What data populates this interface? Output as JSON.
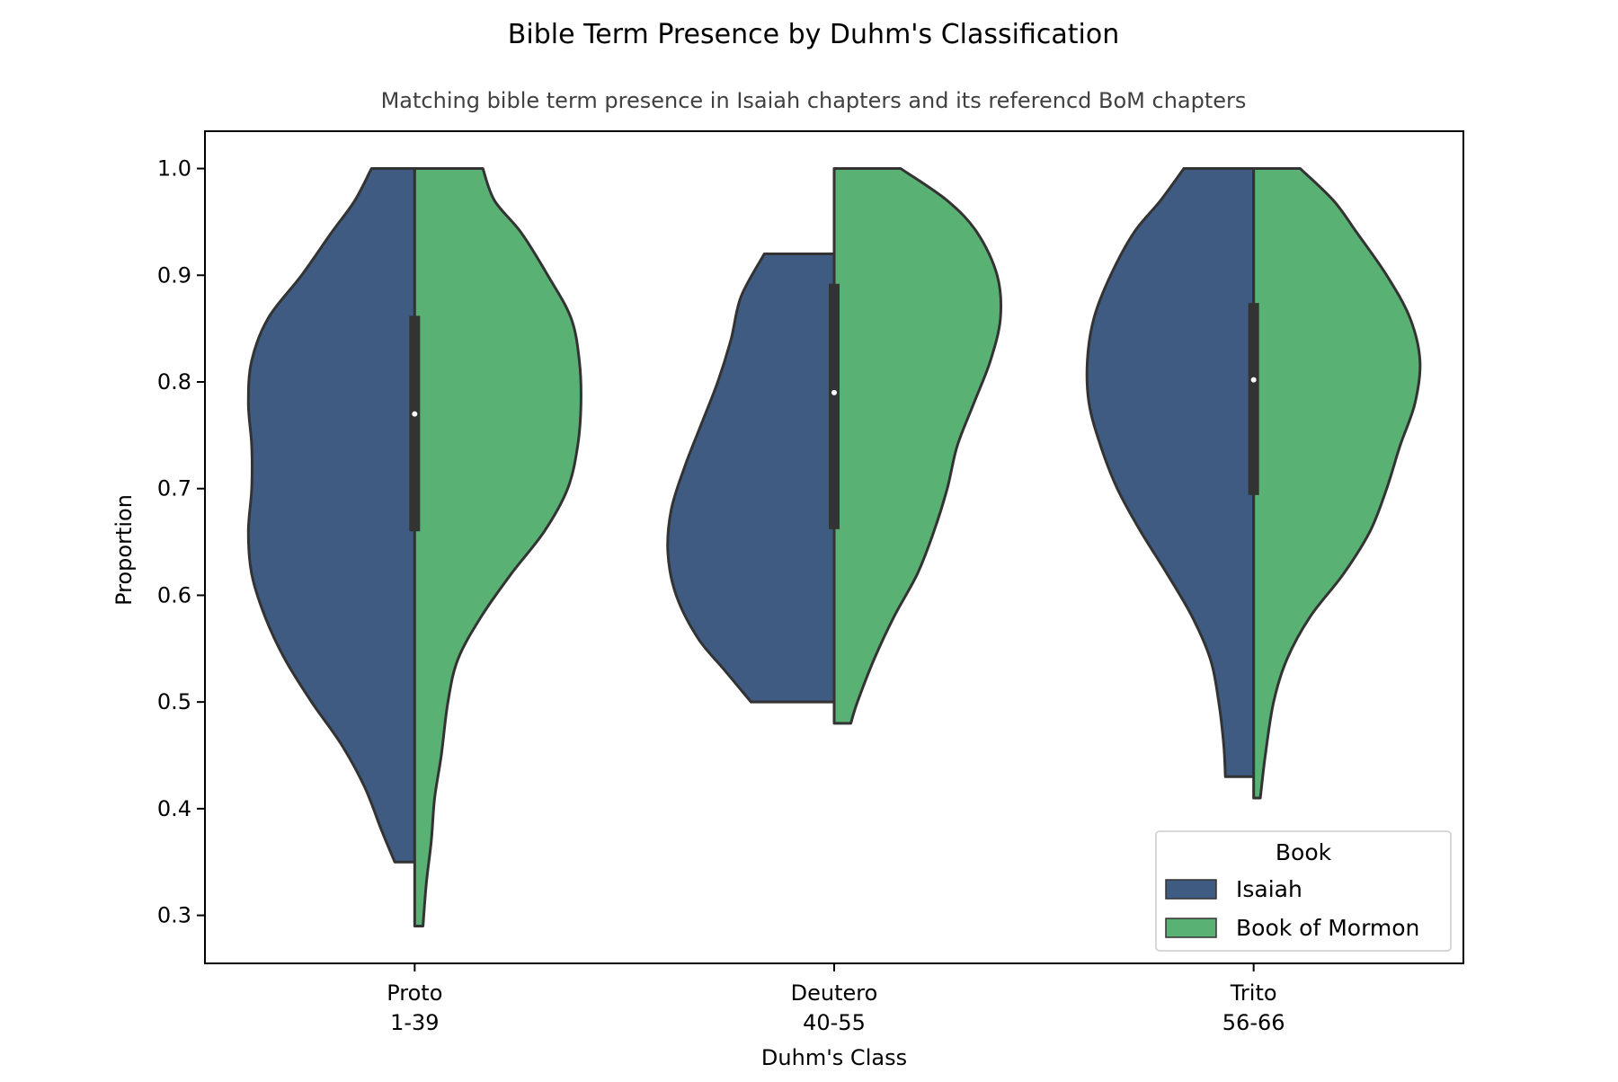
{
  "chart_data": {
    "type": "violin",
    "title": "Bible Term Presence by Duhm's Classification",
    "subtitle": "Matching bible term presence in Isaiah chapters and its referencd BoM chapters",
    "xlabel": "Duhm's Class",
    "ylabel": "Proportion",
    "ylim": [
      0.255,
      1.035
    ],
    "yticks": [
      0.3,
      0.4,
      0.5,
      0.6,
      0.7,
      0.8,
      0.9,
      1.0
    ],
    "ytick_labels": [
      "0.3",
      "0.4",
      "0.5",
      "0.6",
      "0.7",
      "0.8",
      "0.9",
      "1.0"
    ],
    "grid": false,
    "split": true,
    "categories": [
      {
        "line1": "Proto",
        "line2": "1-39"
      },
      {
        "line1": "Deutero",
        "line2": "40-55"
      },
      {
        "line1": "Trito",
        "line2": "56-66"
      }
    ],
    "series": [
      {
        "name": "Isaiah",
        "color": "#3f5b82",
        "side": "left",
        "densities": [
          {
            "min": 0.35,
            "max": 1.0,
            "profile": [
              [
                0.35,
                0.12
              ],
              [
                0.38,
                0.2
              ],
              [
                0.42,
                0.3
              ],
              [
                0.46,
                0.44
              ],
              [
                0.5,
                0.62
              ],
              [
                0.54,
                0.78
              ],
              [
                0.58,
                0.9
              ],
              [
                0.62,
                0.98
              ],
              [
                0.66,
                1.0
              ],
              [
                0.7,
                0.98
              ],
              [
                0.74,
                0.98
              ],
              [
                0.78,
                1.0
              ],
              [
                0.82,
                0.98
              ],
              [
                0.86,
                0.88
              ],
              [
                0.9,
                0.68
              ],
              [
                0.94,
                0.5
              ],
              [
                0.97,
                0.36
              ],
              [
                1.0,
                0.26
              ]
            ]
          },
          {
            "min": 0.5,
            "max": 0.92,
            "profile": [
              [
                0.5,
                0.5
              ],
              [
                0.53,
                0.66
              ],
              [
                0.56,
                0.82
              ],
              [
                0.6,
                0.95
              ],
              [
                0.64,
                1.0
              ],
              [
                0.68,
                0.98
              ],
              [
                0.72,
                0.9
              ],
              [
                0.76,
                0.8
              ],
              [
                0.8,
                0.7
              ],
              [
                0.84,
                0.62
              ],
              [
                0.88,
                0.56
              ],
              [
                0.92,
                0.42
              ]
            ]
          },
          {
            "min": 0.43,
            "max": 1.0,
            "profile": [
              [
                0.43,
                0.17
              ],
              [
                0.46,
                0.18
              ],
              [
                0.5,
                0.21
              ],
              [
                0.54,
                0.26
              ],
              [
                0.58,
                0.37
              ],
              [
                0.62,
                0.52
              ],
              [
                0.66,
                0.68
              ],
              [
                0.7,
                0.82
              ],
              [
                0.74,
                0.92
              ],
              [
                0.78,
                0.99
              ],
              [
                0.82,
                1.0
              ],
              [
                0.86,
                0.96
              ],
              [
                0.9,
                0.86
              ],
              [
                0.94,
                0.72
              ],
              [
                0.97,
                0.56
              ],
              [
                1.0,
                0.42
              ]
            ]
          }
        ]
      },
      {
        "name": "Book of Mormon",
        "color": "#59b273",
        "side": "right",
        "densities": [
          {
            "min": 0.29,
            "max": 1.0,
            "profile": [
              [
                0.29,
                0.05
              ],
              [
                0.33,
                0.07
              ],
              [
                0.37,
                0.1
              ],
              [
                0.41,
                0.12
              ],
              [
                0.45,
                0.16
              ],
              [
                0.5,
                0.2
              ],
              [
                0.54,
                0.26
              ],
              [
                0.58,
                0.4
              ],
              [
                0.62,
                0.58
              ],
              [
                0.66,
                0.78
              ],
              [
                0.7,
                0.92
              ],
              [
                0.74,
                0.98
              ],
              [
                0.78,
                1.0
              ],
              [
                0.82,
                0.99
              ],
              [
                0.86,
                0.94
              ],
              [
                0.9,
                0.8
              ],
              [
                0.94,
                0.64
              ],
              [
                0.97,
                0.48
              ],
              [
                1.0,
                0.41
              ]
            ]
          },
          {
            "min": 0.48,
            "max": 1.0,
            "profile": [
              [
                0.48,
                0.1
              ],
              [
                0.5,
                0.14
              ],
              [
                0.54,
                0.24
              ],
              [
                0.58,
                0.36
              ],
              [
                0.62,
                0.5
              ],
              [
                0.66,
                0.6
              ],
              [
                0.7,
                0.68
              ],
              [
                0.74,
                0.74
              ],
              [
                0.78,
                0.84
              ],
              [
                0.82,
                0.94
              ],
              [
                0.86,
                1.0
              ],
              [
                0.9,
                0.98
              ],
              [
                0.94,
                0.86
              ],
              [
                0.97,
                0.68
              ],
              [
                1.0,
                0.4
              ]
            ]
          },
          {
            "min": 0.41,
            "max": 1.0,
            "profile": [
              [
                0.41,
                0.04
              ],
              [
                0.45,
                0.07
              ],
              [
                0.5,
                0.12
              ],
              [
                0.54,
                0.2
              ],
              [
                0.58,
                0.34
              ],
              [
                0.62,
                0.54
              ],
              [
                0.66,
                0.7
              ],
              [
                0.7,
                0.8
              ],
              [
                0.74,
                0.88
              ],
              [
                0.78,
                0.97
              ],
              [
                0.82,
                1.0
              ],
              [
                0.86,
                0.94
              ],
              [
                0.9,
                0.8
              ],
              [
                0.94,
                0.62
              ],
              [
                0.97,
                0.48
              ],
              [
                1.0,
                0.28
              ]
            ]
          }
        ]
      }
    ],
    "box": [
      {
        "q1": 0.66,
        "median": 0.77,
        "q3": 0.862
      },
      {
        "q1": 0.662,
        "median": 0.79,
        "q3": 0.892
      },
      {
        "q1": 0.694,
        "median": 0.802,
        "q3": 0.874
      }
    ],
    "legend": {
      "title": "Book",
      "placement": "lower-right",
      "entries": [
        {
          "label": "Isaiah",
          "color": "#3f5b82"
        },
        {
          "label": "Book of Mormon",
          "color": "#59b273"
        }
      ]
    }
  }
}
